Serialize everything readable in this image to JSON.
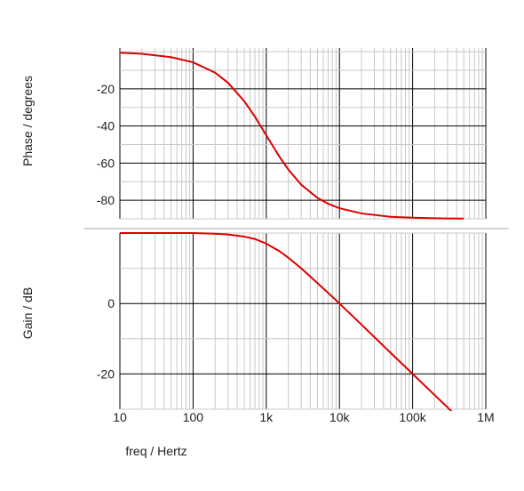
{
  "chart_data": [
    {
      "type": "line",
      "title": "",
      "xlabel": "",
      "ylabel": "Phase / degrees",
      "xscale": "log",
      "xlim": [
        10,
        1000000
      ],
      "ylim": [
        -90,
        2
      ],
      "yticks": [
        -20,
        -40,
        -60,
        -80
      ],
      "ytick_labels": [
        "-20",
        "-40",
        "-60",
        "-80"
      ],
      "grid": true,
      "series": [
        {
          "color": "#dd0000",
          "x": [
            10,
            20,
            50,
            100,
            200,
            300,
            500,
            700,
            1000,
            1500,
            2000,
            3000,
            5000,
            7000,
            10000,
            20000,
            50000,
            100000,
            200000,
            300000,
            500000
          ],
          "y": [
            -0.5,
            -1.1,
            -2.9,
            -5.7,
            -11.3,
            -16.7,
            -26.6,
            -35.0,
            -45.0,
            -56.3,
            -63.4,
            -71.6,
            -78.7,
            -81.9,
            -84.3,
            -87.1,
            -88.9,
            -89.4,
            -89.7,
            -89.8,
            -89.9
          ]
        }
      ]
    },
    {
      "type": "line",
      "title": "",
      "xlabel": "freq / Hertz",
      "ylabel": "Gain / dB",
      "xscale": "log",
      "xlim": [
        10,
        1000000
      ],
      "ylim": [
        -30,
        20
      ],
      "xticks": [
        10,
        100,
        1000,
        10000,
        100000,
        1000000
      ],
      "xtick_labels": [
        "10",
        "100",
        "1k",
        "10k",
        "100k",
        "1M"
      ],
      "yticks": [
        0,
        -20
      ],
      "ytick_labels": [
        "0",
        "-20"
      ],
      "grid": true,
      "series": [
        {
          "color": "#dd0000",
          "x": [
            10,
            20,
            50,
            100,
            200,
            300,
            500,
            700,
            1000,
            1500,
            2000,
            3000,
            5000,
            7000,
            10000,
            20000,
            50000,
            100000,
            200000,
            300000,
            500000
          ],
          "y": [
            20.0,
            20.0,
            20.0,
            20.0,
            19.8,
            19.6,
            19.0,
            18.3,
            17.0,
            14.9,
            13.0,
            10.0,
            5.8,
            3.0,
            0.0,
            -6.0,
            -14.0,
            -20.0,
            -26.0,
            -29.5,
            -34.0
          ]
        }
      ]
    }
  ]
}
